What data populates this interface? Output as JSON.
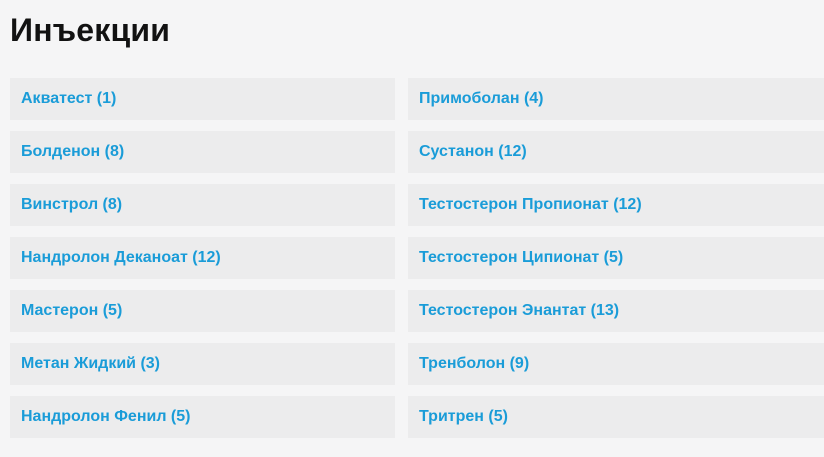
{
  "page": {
    "title": "Инъекции"
  },
  "theme": {
    "page_bg": "#f5f5f6",
    "row_bg": "#ececed",
    "link_color": "#1a9cd8",
    "title_color": "#121212"
  },
  "categories": {
    "left": [
      {
        "name": "Акватест",
        "count": 1
      },
      {
        "name": "Болденон",
        "count": 8
      },
      {
        "name": "Винстрол",
        "count": 8
      },
      {
        "name": "Нандролон Деканоат",
        "count": 12
      },
      {
        "name": "Мастерон",
        "count": 5
      },
      {
        "name": "Метан Жидкий",
        "count": 3
      },
      {
        "name": "Нандролон Фенил",
        "count": 5
      }
    ],
    "right": [
      {
        "name": "Примоболан",
        "count": 4
      },
      {
        "name": "Сустанон",
        "count": 12
      },
      {
        "name": "Тестостерон Пропионат",
        "count": 12
      },
      {
        "name": "Тестостерон Ципионат",
        "count": 5
      },
      {
        "name": "Тестостерон Энантат",
        "count": 13
      },
      {
        "name": "Тренболон",
        "count": 9
      },
      {
        "name": "Тритрен",
        "count": 5
      }
    ]
  }
}
